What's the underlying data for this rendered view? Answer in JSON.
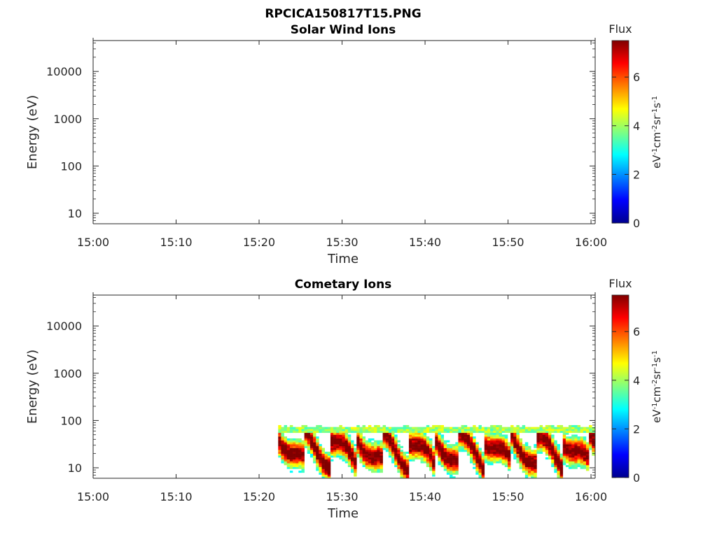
{
  "figure": {
    "main_title": "RPCICA150817T15.PNG"
  },
  "colorbar": {
    "label": "Flux",
    "unit_prefix": "eV",
    "unit_parts": [
      [
        "eV",
        "-1"
      ],
      [
        "cm",
        "-2"
      ],
      [
        "sr",
        "-1"
      ],
      [
        "s",
        "-1"
      ]
    ],
    "ticks": [
      "0",
      "2",
      "4",
      "6"
    ],
    "range": [
      0,
      7.5
    ]
  },
  "colormap": [
    "#00008f",
    "#0000ff",
    "#00ffff",
    "#ffff00",
    "#ff0000",
    "#800000"
  ],
  "chart_data": [
    {
      "type": "heatmap",
      "title": "Solar Wind Ions",
      "xlabel": "Time",
      "ylabel": "Energy (eV)",
      "x_ticks": [
        "15:00",
        "15:10",
        "15:20",
        "15:30",
        "15:40",
        "15:50",
        "16:00"
      ],
      "x_range_minutes": [
        0,
        60.5
      ],
      "y_scale": "log",
      "y_ticks": [
        "10",
        "100",
        "1000",
        "10000"
      ],
      "y_range": [
        6,
        45000
      ],
      "flux_regions": []
    },
    {
      "type": "heatmap",
      "title": "Cometary Ions",
      "xlabel": "Time",
      "ylabel": "Energy (eV)",
      "x_ticks": [
        "15:00",
        "15:10",
        "15:20",
        "15:30",
        "15:40",
        "15:50",
        "16:00"
      ],
      "x_range_minutes": [
        0,
        60.5
      ],
      "y_scale": "log",
      "y_ticks": [
        "10",
        "100",
        "1000",
        "10000"
      ],
      "y_range": [
        6,
        45000
      ],
      "flux_regions": [
        {
          "t_start": 22.3,
          "t_end": 60.5,
          "e_low": 6,
          "e_high": 80,
          "peak_flux": 7.2
        }
      ]
    }
  ]
}
